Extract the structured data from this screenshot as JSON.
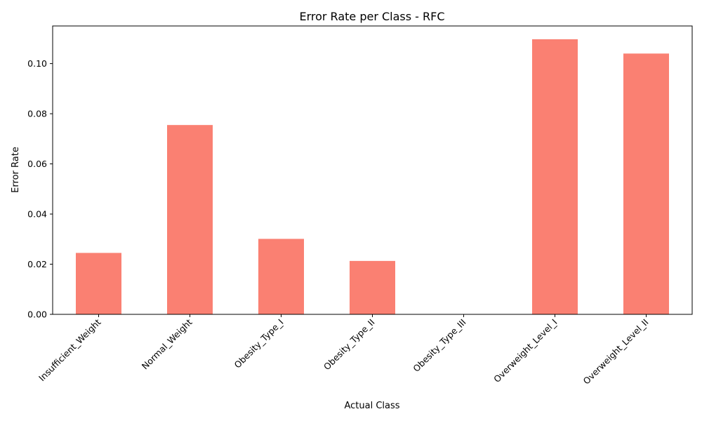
{
  "chart_data": {
    "type": "bar",
    "title": "Error Rate per Class - RFC",
    "xlabel": "Actual Class",
    "ylabel": "Error Rate",
    "categories": [
      "Insufficient_Weight",
      "Normal_Weight",
      "Obesity_Type_I",
      "Obesity_Type_II",
      "Obesity_Type_III",
      "Overweight_Level_I",
      "Overweight_Level_II"
    ],
    "values": [
      0.0245,
      0.0755,
      0.0301,
      0.0213,
      0.0,
      0.1097,
      0.104
    ],
    "ylim": [
      0,
      0.115
    ],
    "yticks": [
      "0.00",
      "0.02",
      "0.04",
      "0.06",
      "0.08",
      "0.10"
    ],
    "bar_color": "#fa8072",
    "grid": false,
    "legend": "none"
  }
}
